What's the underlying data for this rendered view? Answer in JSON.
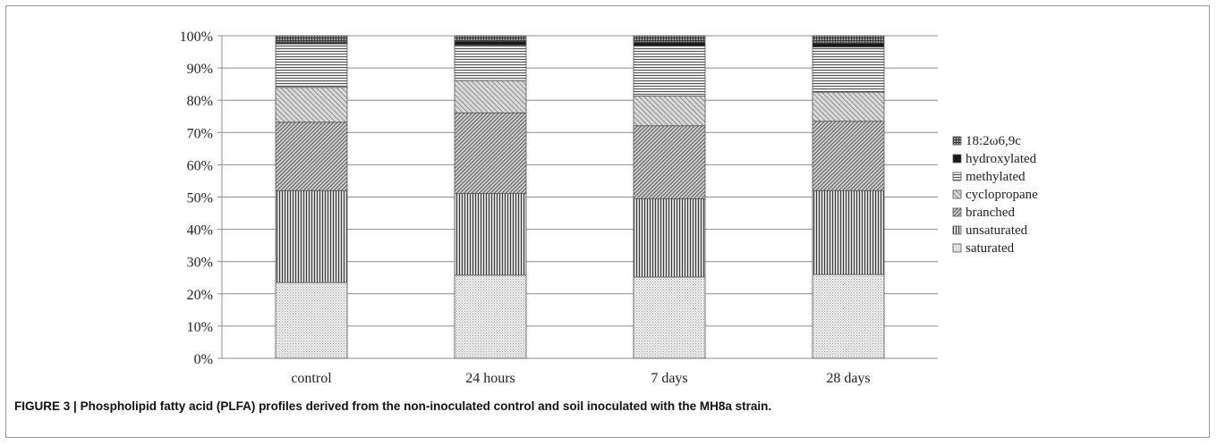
{
  "caption": {
    "label": "FIGURE 3 |",
    "text": "Phospholipid fatty acid (PLFA) profiles derived from the non-inoculated control and soil inoculated with the MH8a strain."
  },
  "chart_data": {
    "type": "bar",
    "stacked": true,
    "normalized_percent": true,
    "categories": [
      "control",
      "24 hours",
      "7 days",
      "28 days"
    ],
    "y_ticks": [
      "0%",
      "10%",
      "20%",
      "30%",
      "40%",
      "50%",
      "60%",
      "70%",
      "80%",
      "90%",
      "100%"
    ],
    "ylim": [
      0,
      100
    ],
    "grid": true,
    "legend_position": "right",
    "series": [
      {
        "name": "saturated",
        "values": [
          23.5,
          25.8,
          25.2,
          26.0
        ],
        "pattern": "dots-light"
      },
      {
        "name": "unsaturated",
        "values": [
          28.5,
          25.3,
          24.3,
          26.0
        ],
        "pattern": "vertical-lines"
      },
      {
        "name": "branched",
        "values": [
          21.2,
          25.0,
          22.6,
          21.5
        ],
        "pattern": "diagonal-dense"
      },
      {
        "name": "cyclopropane",
        "values": [
          10.8,
          10.0,
          9.2,
          9.0
        ],
        "pattern": "diagonal-light"
      },
      {
        "name": "methylated",
        "values": [
          13.5,
          11.0,
          15.5,
          14.0
        ],
        "pattern": "horizontal-lines"
      },
      {
        "name": "hydroxylated",
        "values": [
          0.5,
          1.2,
          1.2,
          1.3
        ],
        "pattern": "solid-dark"
      },
      {
        "name": "18:2ω6,9c",
        "values": [
          2.0,
          1.7,
          2.0,
          2.2
        ],
        "pattern": "grid"
      }
    ],
    "colors": {
      "axis": "#8c8c8c",
      "gridline": "#8c8c8c",
      "text": "#222222",
      "bar_outline": "#555555"
    }
  }
}
